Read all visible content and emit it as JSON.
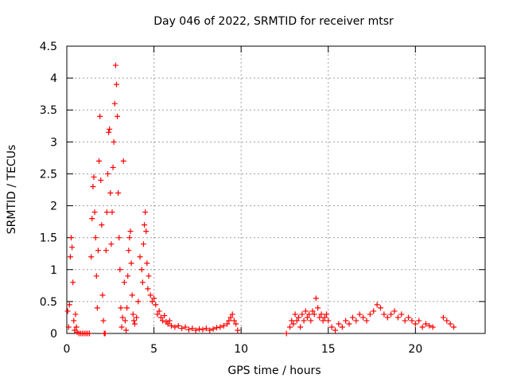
{
  "chart_data": {
    "type": "scatter",
    "title": "Day 046 of 2022, SRMTID for receiver mtsr",
    "xlabel": "GPS time / hours",
    "ylabel": "SRMTID / TECUs",
    "xlim": [
      0,
      24
    ],
    "ylim": [
      0,
      4.5
    ],
    "x_ticks": [
      "0",
      "5",
      "10",
      "15",
      "20"
    ],
    "y_ticks": [
      "0",
      "0.5",
      "1",
      "1.5",
      "2",
      "2.5",
      "3",
      "3.5",
      "4",
      "4.5"
    ],
    "grid": true,
    "marker": "+",
    "color": "#ff0000",
    "series": [
      {
        "name": "SRMTID",
        "points": [
          [
            0.05,
            0.35
          ],
          [
            0.1,
            0.1
          ],
          [
            0.15,
            0.45
          ],
          [
            0.2,
            1.2
          ],
          [
            0.25,
            1.5
          ],
          [
            0.3,
            1.35
          ],
          [
            0.35,
            0.8
          ],
          [
            0.4,
            0.2
          ],
          [
            0.45,
            0.05
          ],
          [
            0.5,
            0.3
          ],
          [
            0.55,
            0.1
          ],
          [
            0.6,
            0.02
          ],
          [
            0.7,
            0.0
          ],
          [
            0.8,
            0.0
          ],
          [
            0.9,
            0.0
          ],
          [
            1.0,
            0.0
          ],
          [
            1.1,
            0.0
          ],
          [
            1.2,
            0.0
          ],
          [
            1.3,
            0.0
          ],
          [
            1.4,
            1.2
          ],
          [
            1.45,
            1.8
          ],
          [
            1.5,
            2.3
          ],
          [
            1.55,
            2.45
          ],
          [
            1.6,
            1.9
          ],
          [
            1.65,
            1.5
          ],
          [
            1.7,
            0.9
          ],
          [
            1.75,
            0.4
          ],
          [
            1.8,
            1.3
          ],
          [
            1.85,
            2.7
          ],
          [
            1.9,
            3.4
          ],
          [
            1.95,
            2.4
          ],
          [
            2.0,
            1.7
          ],
          [
            2.05,
            0.6
          ],
          [
            2.1,
            0.2
          ],
          [
            2.15,
            0.0
          ],
          [
            2.2,
            0.0
          ],
          [
            2.25,
            1.3
          ],
          [
            2.3,
            1.9
          ],
          [
            2.35,
            2.5
          ],
          [
            2.4,
            3.15
          ],
          [
            2.45,
            3.2
          ],
          [
            2.5,
            2.2
          ],
          [
            2.55,
            1.4
          ],
          [
            2.6,
            1.9
          ],
          [
            2.65,
            2.6
          ],
          [
            2.7,
            3.0
          ],
          [
            2.75,
            3.6
          ],
          [
            2.8,
            4.2
          ],
          [
            2.85,
            3.9
          ],
          [
            2.9,
            3.4
          ],
          [
            2.95,
            2.2
          ],
          [
            3.0,
            1.5
          ],
          [
            3.05,
            1.0
          ],
          [
            3.1,
            0.4
          ],
          [
            3.15,
            0.1
          ],
          [
            3.2,
            0.25
          ],
          [
            3.25,
            2.7
          ],
          [
            3.3,
            0.8
          ],
          [
            3.35,
            0.2
          ],
          [
            3.4,
            0.05
          ],
          [
            3.45,
            0.4
          ],
          [
            3.5,
            0.9
          ],
          [
            3.55,
            1.3
          ],
          [
            3.6,
            1.5
          ],
          [
            3.65,
            1.6
          ],
          [
            3.7,
            1.1
          ],
          [
            3.75,
            0.6
          ],
          [
            3.8,
            0.3
          ],
          [
            3.85,
            0.2
          ],
          [
            3.9,
            0.15
          ],
          [
            4.0,
            0.25
          ],
          [
            4.1,
            0.5
          ],
          [
            4.2,
            1.2
          ],
          [
            4.3,
            1.0
          ],
          [
            4.35,
            0.8
          ],
          [
            4.4,
            1.4
          ],
          [
            4.45,
            1.7
          ],
          [
            4.5,
            1.9
          ],
          [
            4.55,
            1.6
          ],
          [
            4.6,
            1.1
          ],
          [
            4.65,
            0.7
          ],
          [
            4.7,
            0.9
          ],
          [
            4.8,
            0.6
          ],
          [
            4.9,
            0.5
          ],
          [
            5.0,
            0.55
          ],
          [
            5.1,
            0.45
          ],
          [
            5.2,
            0.3
          ],
          [
            5.3,
            0.35
          ],
          [
            5.4,
            0.25
          ],
          [
            5.5,
            0.2
          ],
          [
            5.6,
            0.28
          ],
          [
            5.7,
            0.18
          ],
          [
            5.8,
            0.15
          ],
          [
            5.9,
            0.2
          ],
          [
            6.0,
            0.12
          ],
          [
            6.2,
            0.1
          ],
          [
            6.4,
            0.12
          ],
          [
            6.6,
            0.08
          ],
          [
            6.8,
            0.1
          ],
          [
            7.0,
            0.06
          ],
          [
            7.2,
            0.08
          ],
          [
            7.4,
            0.05
          ],
          [
            7.6,
            0.07
          ],
          [
            7.8,
            0.06
          ],
          [
            8.0,
            0.08
          ],
          [
            8.2,
            0.05
          ],
          [
            8.4,
            0.07
          ],
          [
            8.6,
            0.09
          ],
          [
            8.8,
            0.1
          ],
          [
            9.0,
            0.12
          ],
          [
            9.2,
            0.15
          ],
          [
            9.3,
            0.2
          ],
          [
            9.4,
            0.25
          ],
          [
            9.5,
            0.3
          ],
          [
            9.6,
            0.2
          ],
          [
            9.7,
            0.15
          ],
          [
            9.8,
            0.05
          ],
          [
            12.6,
            0.0
          ],
          [
            12.8,
            0.1
          ],
          [
            12.9,
            0.2
          ],
          [
            13.0,
            0.15
          ],
          [
            13.1,
            0.3
          ],
          [
            13.2,
            0.2
          ],
          [
            13.3,
            0.25
          ],
          [
            13.4,
            0.1
          ],
          [
            13.5,
            0.3
          ],
          [
            13.6,
            0.2
          ],
          [
            13.7,
            0.35
          ],
          [
            13.8,
            0.25
          ],
          [
            13.9,
            0.3
          ],
          [
            14.0,
            0.2
          ],
          [
            14.1,
            0.35
          ],
          [
            14.2,
            0.3
          ],
          [
            14.3,
            0.55
          ],
          [
            14.4,
            0.4
          ],
          [
            14.5,
            0.25
          ],
          [
            14.6,
            0.3
          ],
          [
            14.7,
            0.2
          ],
          [
            14.8,
            0.25
          ],
          [
            14.9,
            0.3
          ],
          [
            15.0,
            0.2
          ],
          [
            15.2,
            0.1
          ],
          [
            15.4,
            0.05
          ],
          [
            15.6,
            0.15
          ],
          [
            15.8,
            0.1
          ],
          [
            16.0,
            0.2
          ],
          [
            16.2,
            0.15
          ],
          [
            16.4,
            0.25
          ],
          [
            16.6,
            0.2
          ],
          [
            16.8,
            0.3
          ],
          [
            17.0,
            0.25
          ],
          [
            17.2,
            0.2
          ],
          [
            17.4,
            0.3
          ],
          [
            17.6,
            0.35
          ],
          [
            17.8,
            0.45
          ],
          [
            18.0,
            0.4
          ],
          [
            18.2,
            0.3
          ],
          [
            18.4,
            0.25
          ],
          [
            18.6,
            0.3
          ],
          [
            18.8,
            0.35
          ],
          [
            19.0,
            0.25
          ],
          [
            19.2,
            0.3
          ],
          [
            19.4,
            0.2
          ],
          [
            19.6,
            0.25
          ],
          [
            19.8,
            0.2
          ],
          [
            20.0,
            0.15
          ],
          [
            20.2,
            0.2
          ],
          [
            20.4,
            0.1
          ],
          [
            20.6,
            0.15
          ],
          [
            20.8,
            0.12
          ],
          [
            21.0,
            0.1
          ],
          [
            21.6,
            0.25
          ],
          [
            21.8,
            0.2
          ],
          [
            22.0,
            0.15
          ],
          [
            22.2,
            0.1
          ]
        ]
      }
    ]
  }
}
